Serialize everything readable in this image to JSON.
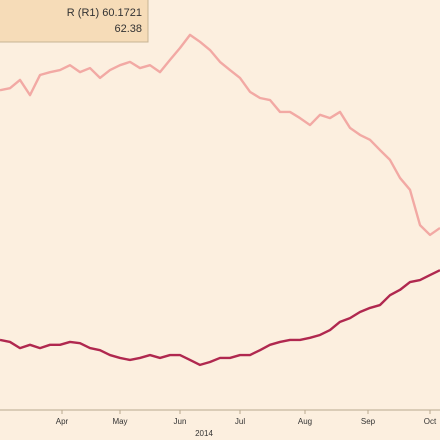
{
  "chart_data": {
    "type": "line",
    "x": [
      0,
      1,
      2,
      3,
      4,
      5,
      6,
      7,
      8,
      9,
      10,
      11,
      12,
      13,
      14,
      15,
      16,
      17,
      18,
      19,
      20,
      21,
      22,
      23,
      24,
      25,
      26,
      27,
      28,
      29,
      30,
      31,
      32,
      33,
      34,
      35,
      36,
      37,
      38,
      39,
      40,
      41,
      42,
      43,
      44
    ],
    "series": [
      {
        "name": "R (R1) 60.1721",
        "color": "#f2a9a4",
        "values": [
          78.0,
          78.5,
          80.5,
          76.8,
          81.7,
          82.4,
          82.9,
          84.1,
          82.4,
          83.4,
          81.0,
          82.9,
          84.1,
          84.9,
          83.4,
          84.1,
          82.4,
          85.4,
          88.3,
          91.5,
          89.8,
          87.8,
          84.9,
          82.9,
          81.0,
          77.6,
          76.1,
          75.6,
          72.7,
          72.7,
          71.2,
          69.5,
          72.0,
          71.2,
          72.7,
          68.8,
          67.1,
          65.9,
          63.4,
          61.0,
          56.6,
          53.7,
          45.1,
          42.7,
          44.4
        ]
      },
      {
        "name": "62.38",
        "color": "#b0284f",
        "values": [
          17.1,
          16.6,
          15.1,
          15.9,
          15.1,
          15.9,
          15.9,
          16.6,
          16.3,
          15.1,
          14.6,
          13.4,
          12.7,
          12.2,
          12.7,
          13.4,
          12.7,
          13.4,
          13.4,
          12.2,
          11.0,
          11.7,
          12.7,
          12.7,
          13.4,
          13.4,
          14.6,
          15.9,
          16.6,
          17.1,
          17.1,
          17.6,
          18.3,
          19.5,
          21.5,
          22.4,
          23.9,
          24.9,
          25.6,
          28.0,
          29.3,
          31.2,
          31.7,
          32.9,
          34.1
        ]
      }
    ],
    "xlim": [
      0,
      44
    ],
    "ylim": [
      0,
      100
    ],
    "xticks": [
      {
        "value": 6.2,
        "label": "Apr"
      },
      {
        "value": 12,
        "label": "May"
      },
      {
        "value": 18,
        "label": "Jun"
      },
      {
        "value": 24,
        "label": "Jul"
      },
      {
        "value": 30.5,
        "label": "Aug"
      },
      {
        "value": 36.8,
        "label": "Sep"
      },
      {
        "value": 43,
        "label": "Oct"
      }
    ],
    "xlabel": "2014"
  }
}
